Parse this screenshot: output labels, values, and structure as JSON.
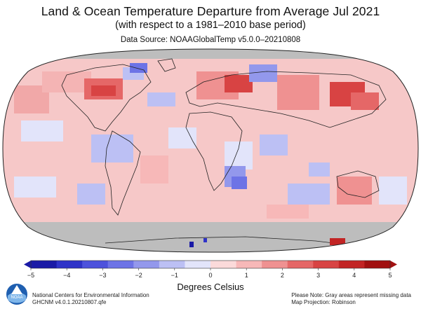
{
  "title": "Land & Ocean Temperature Departure from Average Jul 2021",
  "subtitle": "(with respect to a 1981–2010 base period)",
  "data_source": "Data Source: NOAAGlobalTemp v5.0.0–20210808",
  "colorbar": {
    "ticks": [
      "−5",
      "−4",
      "−3",
      "−2",
      "−1",
      "0",
      "1",
      "2",
      "3",
      "4",
      "5"
    ],
    "min": -5,
    "max": 5,
    "units_label": "Degrees Celsius",
    "colors": [
      "#1a1aa6",
      "#2f33c8",
      "#4d52dc",
      "#6d73e6",
      "#9398ec",
      "#bcc0f4",
      "#e2e4fa",
      "#fbdada",
      "#f7b8b8",
      "#ef9191",
      "#e56767",
      "#d84343",
      "#c22424",
      "#a11010"
    ]
  },
  "footer": {
    "org_line1": "National Centers for Environmental Information",
    "org_line2": "GHCNM v4.0.1.20210807.qfe",
    "note_line1": "Please Note: Gray areas represent missing data",
    "note_line2": "Map Projection: Robinson"
  },
  "logo_text": "NOAA",
  "map_colors": {
    "missing": "#bdbdbd",
    "ocean_base": "#f6c8c8",
    "outline": "#222222"
  }
}
